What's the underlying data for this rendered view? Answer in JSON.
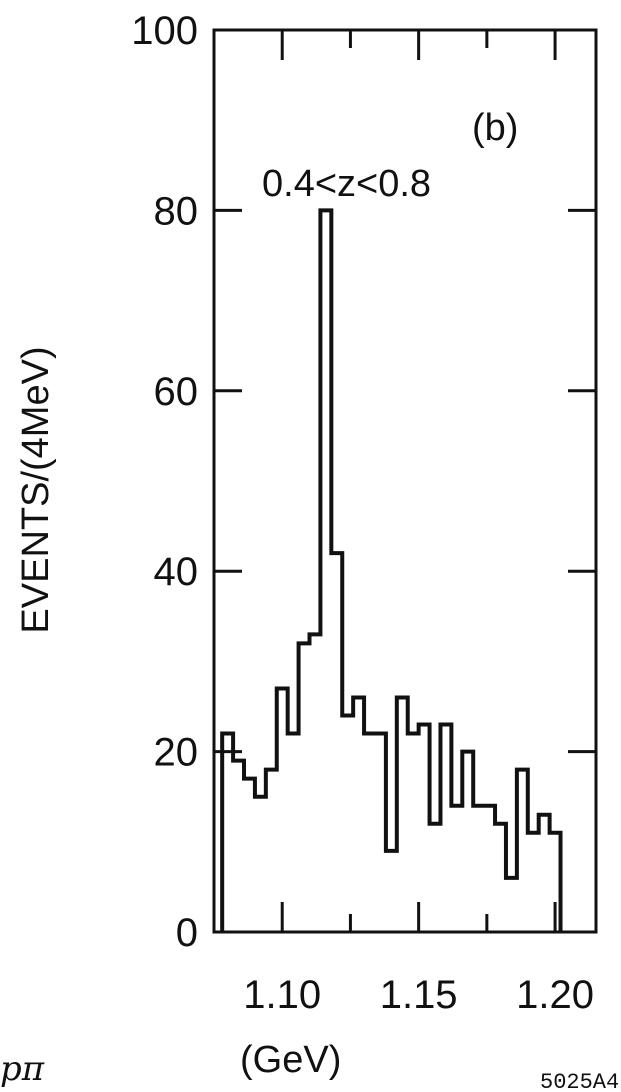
{
  "chart_data": {
    "type": "histogram",
    "panel_label": "(b)",
    "annotation": "0.4<z<0.8",
    "ylabel": "EVENTS/(4MeV)",
    "xlabel": "(GeV)",
    "xlim": [
      1.075,
      1.215
    ],
    "ylim": [
      0,
      100
    ],
    "bin_width": 0.004,
    "x_ticks": [
      1.1,
      1.15,
      1.2
    ],
    "x_tick_labels": [
      "1.10",
      "1.15",
      "1.20"
    ],
    "y_ticks": [
      0,
      20,
      40,
      60,
      80,
      100
    ],
    "y_tick_labels": [
      "0",
      "20",
      "40",
      "60",
      "80",
      "100"
    ],
    "bins": [
      {
        "x0": 1.078,
        "y": 22
      },
      {
        "x0": 1.082,
        "y": 19
      },
      {
        "x0": 1.086,
        "y": 17
      },
      {
        "x0": 1.09,
        "y": 15
      },
      {
        "x0": 1.094,
        "y": 18
      },
      {
        "x0": 1.098,
        "y": 27
      },
      {
        "x0": 1.102,
        "y": 22
      },
      {
        "x0": 1.106,
        "y": 32
      },
      {
        "x0": 1.11,
        "y": 33
      },
      {
        "x0": 1.114,
        "y": 80
      },
      {
        "x0": 1.118,
        "y": 42
      },
      {
        "x0": 1.122,
        "y": 24
      },
      {
        "x0": 1.126,
        "y": 26
      },
      {
        "x0": 1.13,
        "y": 22
      },
      {
        "x0": 1.134,
        "y": 22
      },
      {
        "x0": 1.138,
        "y": 9
      },
      {
        "x0": 1.142,
        "y": 26
      },
      {
        "x0": 1.146,
        "y": 22
      },
      {
        "x0": 1.15,
        "y": 23
      },
      {
        "x0": 1.154,
        "y": 12
      },
      {
        "x0": 1.158,
        "y": 23
      },
      {
        "x0": 1.162,
        "y": 14
      },
      {
        "x0": 1.166,
        "y": 20
      },
      {
        "x0": 1.17,
        "y": 14
      },
      {
        "x0": 1.174,
        "y": 14
      },
      {
        "x0": 1.178,
        "y": 12
      },
      {
        "x0": 1.182,
        "y": 6
      },
      {
        "x0": 1.186,
        "y": 18
      },
      {
        "x0": 1.19,
        "y": 11
      },
      {
        "x0": 1.194,
        "y": 13
      },
      {
        "x0": 1.198,
        "y": 11
      }
    ],
    "grid": false
  },
  "corner_text": "pπ",
  "figure_tag": "5025A4"
}
